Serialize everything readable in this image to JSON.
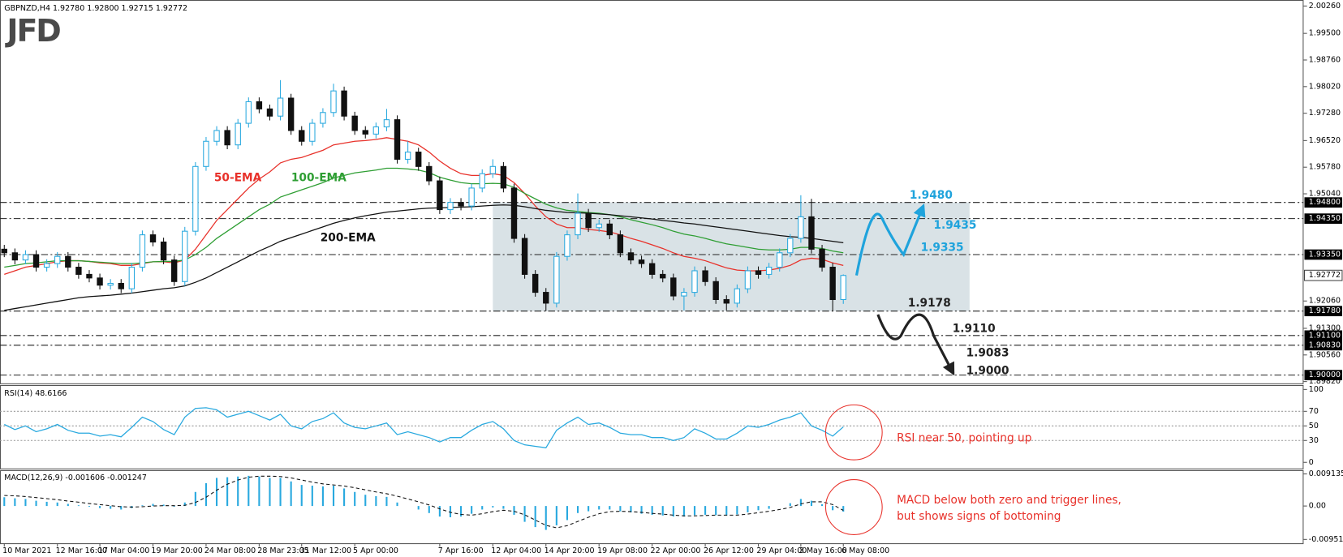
{
  "logo": "JFD",
  "chart_data": [
    {
      "type": "candlestick",
      "title": "GBPNZD,H4 1.92780 1.92800 1.92715 1.92772",
      "categories": [
        "10 Mar 2021",
        null,
        null,
        null,
        null,
        "12 Mar 16:00",
        null,
        null,
        null,
        "17 Mar 04:00",
        null,
        null,
        null,
        null,
        "19 Mar 20:00",
        null,
        null,
        null,
        null,
        "24 Mar 08:00",
        null,
        null,
        null,
        null,
        "28 Mar 23:05",
        null,
        null,
        null,
        "31 Mar 12:00",
        null,
        null,
        null,
        null,
        "5 Apr 00:00",
        null,
        null,
        null,
        null,
        null,
        null,
        null,
        "7 Apr 16:00",
        null,
        null,
        null,
        null,
        "12 Apr 04:00",
        null,
        null,
        null,
        null,
        "14 Apr 20:00",
        null,
        null,
        null,
        null,
        "19 Apr 08:00",
        null,
        null,
        null,
        null,
        "22 Apr 00:00",
        null,
        null,
        null,
        null,
        "26 Apr 12:00",
        null,
        null,
        null,
        null,
        "29 Apr 04:00",
        null,
        null,
        null,
        "3 May 16:00",
        null,
        null,
        null,
        "6 May 08:00"
      ],
      "open": [
        1.935,
        1.934,
        1.932,
        1.9335,
        1.93,
        1.931,
        1.933,
        1.93,
        1.928,
        1.927,
        1.925,
        1.9255,
        1.924,
        1.93,
        1.939,
        1.937,
        1.932,
        1.926,
        1.94,
        1.958,
        1.965,
        1.968,
        1.964,
        1.97,
        1.976,
        1.974,
        1.972,
        1.977,
        1.968,
        1.965,
        1.97,
        1.973,
        1.979,
        1.972,
        1.968,
        1.967,
        1.969,
        1.971,
        1.96,
        1.962,
        1.958,
        1.954,
        1.946,
        1.948,
        1.947,
        1.952,
        1.956,
        1.958,
        1.952,
        1.938,
        1.928,
        1.923,
        1.92,
        1.933,
        1.939,
        1.945,
        1.941,
        1.942,
        1.939,
        1.934,
        1.932,
        1.931,
        1.928,
        1.927,
        1.922,
        1.923,
        1.929,
        1.926,
        1.921,
        1.92,
        1.924,
        1.929,
        1.928,
        1.93,
        1.934,
        1.938,
        1.944,
        1.935,
        1.93,
        1.921
      ],
      "high": [
        1.9362,
        1.9352,
        1.9347,
        1.9347,
        1.9322,
        1.9342,
        1.9342,
        1.9312,
        1.9292,
        1.9282,
        1.9267,
        1.9267,
        1.9312,
        1.9402,
        1.9402,
        1.9382,
        1.9332,
        1.9412,
        1.9592,
        1.9662,
        1.9692,
        1.9692,
        1.9712,
        1.9772,
        1.9772,
        1.9752,
        1.982,
        1.9782,
        1.9692,
        1.9712,
        1.9742,
        1.981,
        1.9802,
        1.9732,
        1.9692,
        1.9702,
        1.974,
        1.9722,
        1.965,
        1.9632,
        1.9592,
        1.9552,
        1.9492,
        1.9492,
        1.9532,
        1.9572,
        1.96,
        1.9592,
        1.9532,
        1.9392,
        1.9292,
        1.9242,
        1.9342,
        1.9402,
        1.9505,
        1.9462,
        1.9432,
        1.9432,
        1.9402,
        1.9352,
        1.9332,
        1.9322,
        1.9292,
        1.9282,
        1.9242,
        1.9302,
        1.9302,
        1.9272,
        1.9222,
        1.9252,
        1.9302,
        1.9302,
        1.9312,
        1.9352,
        1.9392,
        1.95,
        1.949,
        1.9362,
        1.9312,
        1.928
      ],
      "low": [
        1.9328,
        1.9308,
        1.9308,
        1.9288,
        1.9288,
        1.9298,
        1.9288,
        1.9268,
        1.9258,
        1.9238,
        1.9238,
        1.9228,
        1.9228,
        1.9288,
        1.9358,
        1.9308,
        1.9248,
        1.9248,
        1.9388,
        1.9568,
        1.9638,
        1.9628,
        1.9628,
        1.9688,
        1.9728,
        1.9708,
        1.9708,
        1.9668,
        1.9638,
        1.9638,
        1.9688,
        1.9718,
        1.9708,
        1.9668,
        1.9658,
        1.9658,
        1.9678,
        1.9588,
        1.9588,
        1.9568,
        1.9528,
        1.9448,
        1.9448,
        1.9458,
        1.9458,
        1.9508,
        1.9548,
        1.9508,
        1.9368,
        1.9268,
        1.9218,
        1.9178,
        1.9188,
        1.9318,
        1.9378,
        1.9398,
        1.9398,
        1.9378,
        1.9328,
        1.9308,
        1.9298,
        1.9268,
        1.9258,
        1.9208,
        1.918,
        1.9218,
        1.9248,
        1.9198,
        1.918,
        1.9188,
        1.9228,
        1.9268,
        1.9268,
        1.9288,
        1.9328,
        1.9368,
        1.9338,
        1.9288,
        1.9178,
        1.9198
      ],
      "close": [
        1.934,
        1.932,
        1.9335,
        1.93,
        1.931,
        1.933,
        1.93,
        1.928,
        1.927,
        1.925,
        1.9255,
        1.924,
        1.93,
        1.939,
        1.937,
        1.932,
        1.926,
        1.94,
        1.958,
        1.965,
        1.968,
        1.964,
        1.97,
        1.976,
        1.974,
        1.972,
        1.977,
        1.968,
        1.965,
        1.97,
        1.973,
        1.979,
        1.972,
        1.968,
        1.967,
        1.969,
        1.971,
        1.96,
        1.962,
        1.958,
        1.954,
        1.946,
        1.948,
        1.947,
        1.952,
        1.956,
        1.958,
        1.952,
        1.938,
        1.928,
        1.923,
        1.92,
        1.933,
        1.939,
        1.945,
        1.941,
        1.942,
        1.939,
        1.934,
        1.932,
        1.931,
        1.928,
        1.927,
        1.922,
        1.923,
        1.929,
        1.926,
        1.921,
        1.92,
        1.924,
        1.929,
        1.928,
        1.93,
        1.934,
        1.938,
        1.944,
        1.935,
        1.93,
        1.921,
        1.9277
      ],
      "up_color": "#29a9df",
      "down_color": "#111111",
      "series": [
        {
          "name": "50-EMA",
          "color": "#e8312a",
          "values": [
            1.928,
            1.929,
            1.93,
            1.9305,
            1.931,
            1.9315,
            1.9318,
            1.9318,
            1.9316,
            1.9312,
            1.931,
            1.9305,
            1.9305,
            1.931,
            1.9315,
            1.9315,
            1.9312,
            1.932,
            1.935,
            1.939,
            1.943,
            1.946,
            1.949,
            1.952,
            1.9545,
            1.9565,
            1.959,
            1.96,
            1.9605,
            1.9615,
            1.9625,
            1.964,
            1.9645,
            1.965,
            1.9652,
            1.9655,
            1.966,
            1.9655,
            1.965,
            1.964,
            1.962,
            1.9595,
            1.9575,
            1.956,
            1.9555,
            1.9555,
            1.956,
            1.9555,
            1.9535,
            1.9505,
            1.947,
            1.944,
            1.942,
            1.941,
            1.941,
            1.9405,
            1.9402,
            1.9398,
            1.939,
            1.938,
            1.9372,
            1.9362,
            1.9352,
            1.934,
            1.933,
            1.9325,
            1.9318,
            1.9308,
            1.9298,
            1.9292,
            1.929,
            1.929,
            1.9292,
            1.9297,
            1.9305,
            1.932,
            1.9325,
            1.9322,
            1.9312,
            1.9305
          ]
        },
        {
          "name": "100-EMA",
          "color": "#2e9e33",
          "values": [
            1.93,
            1.9305,
            1.931,
            1.9312,
            1.9315,
            1.9318,
            1.9318,
            1.9318,
            1.9316,
            1.9314,
            1.9312,
            1.931,
            1.931,
            1.9312,
            1.9315,
            1.9316,
            1.9316,
            1.932,
            1.9335,
            1.9355,
            1.938,
            1.94,
            1.942,
            1.944,
            1.946,
            1.9475,
            1.9495,
            1.9505,
            1.9515,
            1.9525,
            1.9535,
            1.9548,
            1.9555,
            1.9562,
            1.9566,
            1.957,
            1.9575,
            1.9575,
            1.9573,
            1.957,
            1.9563,
            1.955,
            1.9542,
            1.9535,
            1.9532,
            1.9532,
            1.9533,
            1.9532,
            1.9522,
            1.9505,
            1.949,
            1.9475,
            1.9465,
            1.9458,
            1.9455,
            1.9452,
            1.945,
            1.9446,
            1.944,
            1.9432,
            1.9425,
            1.9418,
            1.941,
            1.94,
            1.9392,
            1.9387,
            1.938,
            1.9372,
            1.9365,
            1.936,
            1.9355,
            1.935,
            1.9348,
            1.9348,
            1.935,
            1.9355,
            1.9355,
            1.9352,
            1.9345,
            1.934
          ]
        },
        {
          "name": "200-EMA",
          "color": "#111111",
          "values": [
            1.918,
            1.9185,
            1.919,
            1.9195,
            1.92,
            1.9205,
            1.921,
            1.9215,
            1.9218,
            1.922,
            1.9222,
            1.9225,
            1.9228,
            1.9232,
            1.9236,
            1.924,
            1.9243,
            1.9248,
            1.9258,
            1.927,
            1.9285,
            1.93,
            1.9315,
            1.933,
            1.9345,
            1.9358,
            1.9372,
            1.9382,
            1.9392,
            1.9402,
            1.9412,
            1.9422,
            1.943,
            1.9437,
            1.9443,
            1.9448,
            1.9453,
            1.9456,
            1.9459,
            1.9462,
            1.9464,
            1.9465,
            1.9466,
            1.9467,
            1.9468,
            1.947,
            1.9472,
            1.9473,
            1.9472,
            1.9468,
            1.9463,
            1.9458,
            1.9455,
            1.9452,
            1.9451,
            1.945,
            1.9448,
            1.9446,
            1.9443,
            1.944,
            1.9437,
            1.9434,
            1.943,
            1.9427,
            1.9423,
            1.942,
            1.9416,
            1.9412,
            1.9408,
            1.9404,
            1.94,
            1.9396,
            1.9392,
            1.9388,
            1.9385,
            1.9383,
            1.938,
            1.9376,
            1.9372,
            1.9368
          ]
        }
      ],
      "ylim": [
        1.8977,
        2.0038
      ],
      "yticks": [
        {
          "value": 2.0026,
          "label": "2.00260"
        },
        {
          "value": 1.995,
          "label": "1.99500"
        },
        {
          "value": 1.9876,
          "label": "1.98760"
        },
        {
          "value": 1.9802,
          "label": "1.98020"
        },
        {
          "value": 1.9728,
          "label": "1.97280"
        },
        {
          "value": 1.9652,
          "label": "1.96520"
        },
        {
          "value": 1.9578,
          "label": "1.95780"
        },
        {
          "value": 1.9504,
          "label": "1.95040"
        },
        {
          "value": 1.9206,
          "label": "1.92060"
        },
        {
          "value": 1.913,
          "label": "1.91300"
        },
        {
          "value": 1.9056,
          "label": "1.90560"
        },
        {
          "value": 1.8982,
          "label": "1.89820"
        }
      ],
      "levels": [
        {
          "value": 1.948,
          "label": "1.94800"
        },
        {
          "value": 1.9435,
          "label": "1.94350"
        },
        {
          "value": 1.9335,
          "label": "1.93350"
        },
        {
          "value": 1.9178,
          "label": "1.91780"
        },
        {
          "value": 1.911,
          "label": "1.91100"
        },
        {
          "value": 1.9083,
          "label": "1.90830"
        },
        {
          "value": 1.9,
          "label": "1.90000"
        }
      ],
      "price_label": {
        "value": 1.92772,
        "label": "1.92772"
      },
      "annotations": {
        "bullish": {
          "color": "#1fa3dc",
          "levels": [
            {
              "value": 1.948,
              "label": "1.9480"
            },
            {
              "value": 1.9435,
              "label": "1.9435"
            },
            {
              "value": 1.9335,
              "label": "1.9335"
            }
          ]
        },
        "bearish": {
          "color": "#222222",
          "levels": [
            {
              "value": 1.9178,
              "label": "1.9178"
            },
            {
              "value": 1.911,
              "label": "1.9110"
            },
            {
              "value": 1.9083,
              "label": "1.9083"
            },
            {
              "value": 1.9,
              "label": "1.9000"
            }
          ]
        }
      }
    },
    {
      "type": "line",
      "title": "RSI(14) 48.6166",
      "color": "#29a9df",
      "values": [
        52,
        45,
        50,
        42,
        46,
        52,
        44,
        40,
        40,
        36,
        38,
        35,
        48,
        62,
        56,
        45,
        38,
        62,
        74,
        75,
        72,
        62,
        66,
        70,
        64,
        58,
        66,
        50,
        46,
        56,
        60,
        68,
        54,
        48,
        46,
        50,
        54,
        38,
        42,
        38,
        34,
        28,
        34,
        34,
        44,
        52,
        56,
        46,
        30,
        24,
        22,
        20,
        44,
        54,
        62,
        52,
        54,
        48,
        40,
        38,
        38,
        34,
        34,
        30,
        34,
        46,
        40,
        32,
        32,
        40,
        50,
        48,
        52,
        58,
        62,
        68,
        50,
        44,
        36,
        48.6166
      ],
      "ylim": [
        -8.4,
        106
      ],
      "yticks": [
        100,
        70,
        50,
        30,
        0
      ],
      "annotation": "RSI near 50, pointing up"
    },
    {
      "type": "macd",
      "title": "MACD(12,26,9) -0.001606 -0.001247",
      "color": "#29a9df",
      "values": [
        0.0025,
        0.0022,
        0.002,
        0.0015,
        0.0012,
        0.001,
        0.0006,
        0.0002,
        -0.0002,
        -0.0006,
        -0.0008,
        -0.001,
        -0.0006,
        0.0002,
        0.0006,
        0.0004,
        -0.0002,
        0.001,
        0.004,
        0.0065,
        0.008,
        0.0082,
        0.0084,
        0.0086,
        0.0084,
        0.008,
        0.008,
        0.007,
        0.006,
        0.0058,
        0.0056,
        0.0058,
        0.005,
        0.004,
        0.0032,
        0.0028,
        0.0026,
        0.001,
        0.0,
        -0.001,
        -0.002,
        -0.003,
        -0.0032,
        -0.003,
        -0.0022,
        -0.001,
        -0.0004,
        -0.0008,
        -0.0025,
        -0.0045,
        -0.006,
        -0.0068,
        -0.0055,
        -0.004,
        -0.002,
        -0.0015,
        -0.001,
        -0.001,
        -0.0015,
        -0.0018,
        -0.0022,
        -0.0025,
        -0.0027,
        -0.003,
        -0.003,
        -0.0026,
        -0.0025,
        -0.0026,
        -0.0027,
        -0.0024,
        -0.0018,
        -0.0012,
        -0.0008,
        0.0,
        0.0008,
        0.002,
        0.0015,
        0.0005,
        -0.0012,
        -0.001606
      ],
      "signal": [
        0.003,
        0.0029,
        0.0027,
        0.0024,
        0.0021,
        0.0018,
        0.0014,
        0.0011,
        0.0007,
        0.0004,
        0.0001,
        -0.0002,
        -0.0003,
        -0.0002,
        0.0,
        0.0001,
        0.0001,
        0.0002,
        0.001,
        0.0025,
        0.0045,
        0.0062,
        0.0074,
        0.0082,
        0.0085,
        0.0085,
        0.0084,
        0.008,
        0.0074,
        0.0068,
        0.0063,
        0.006,
        0.0057,
        0.0052,
        0.0046,
        0.004,
        0.0035,
        0.0028,
        0.002,
        0.0012,
        0.0003,
        -0.0008,
        -0.0018,
        -0.0024,
        -0.0026,
        -0.0022,
        -0.0016,
        -0.0012,
        -0.0015,
        -0.0025,
        -0.004,
        -0.0055,
        -0.0062,
        -0.0056,
        -0.0044,
        -0.0032,
        -0.0022,
        -0.0016,
        -0.0015,
        -0.0016,
        -0.0018,
        -0.0021,
        -0.0023,
        -0.0026,
        -0.0028,
        -0.0028,
        -0.0027,
        -0.0026,
        -0.0026,
        -0.0026,
        -0.0023,
        -0.0019,
        -0.0015,
        -0.001,
        -0.0004,
        0.0006,
        0.0012,
        0.0012,
        0.0004,
        -0.001247
      ],
      "ylim": [
        -0.0106,
        0.0102
      ],
      "yticks": [
        0.009135,
        {
          "value": 0,
          "label": "0.00"
        },
        -0.009514
      ],
      "annotation": [
        "MACD below both zero and trigger lines,",
        "but shows signs of bottoming"
      ]
    }
  ]
}
